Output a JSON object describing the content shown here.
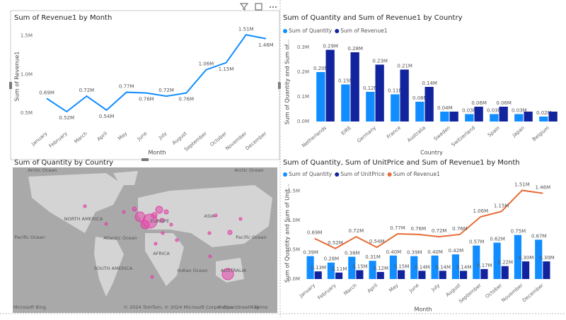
{
  "chart_data": [
    {
      "type": "line",
      "title": "Sum of Revenue1 by Month",
      "x_label": "Month",
      "y_label": "Sum of Revenue1",
      "categories": [
        "January",
        "February",
        "March",
        "April",
        "May",
        "June",
        "July",
        "August",
        "September",
        "October",
        "November",
        "December"
      ],
      "series": [
        {
          "name": "Sum of Revenue1",
          "color": "#118DFF",
          "values": [
            690000,
            520000,
            720000,
            540000,
            770000,
            760000,
            720000,
            760000,
            1060000,
            1150000,
            1510000,
            1460000
          ],
          "value_labels": [
            "0.69M",
            "0.52M",
            "0.72M",
            "0.54M",
            "0.77M",
            "0.76M",
            "0.72M",
            "0.76M",
            "1.06M",
            "1.15M",
            "1.51M",
            "1.46M"
          ]
        }
      ],
      "ylim": [
        320000,
        1640000
      ],
      "yticks": [
        {
          "value": 500000,
          "label": "0.5M"
        },
        {
          "value": 1000000,
          "label": "1.0M"
        },
        {
          "value": 1500000,
          "label": "1.5M"
        }
      ],
      "legend": false
    },
    {
      "type": "bar",
      "title": "Sum of Quantity and Sum of Revenue1 by Country",
      "x_label": "Country",
      "y_label": "Sum of Quantity and Sum of...",
      "categories": [
        "Netherlands",
        "EIRE",
        "Germany",
        "France",
        "Australia",
        "Sweden",
        "Switzerland",
        "Spain",
        "Japan",
        "Belgium"
      ],
      "series": [
        {
          "name": "Sum of Quantity",
          "color": "#118DFF",
          "values": [
            200000,
            150000,
            120000,
            110000,
            80000,
            40000,
            30000,
            30000,
            30000,
            20000
          ],
          "value_labels": [
            "0.20M",
            "0.15M",
            "0.12M",
            "0.11M",
            "0.08M",
            "0.04M",
            "0.03M",
            "0.03M",
            "0.03M",
            "0.02M"
          ]
        },
        {
          "name": "Sum of Revenue1",
          "color": "#12239E",
          "values": [
            290000,
            280000,
            230000,
            210000,
            140000,
            40000,
            60000,
            60000,
            40000,
            40000
          ],
          "value_labels": [
            "0.29M",
            "0.28M",
            "0.23M",
            "0.21M",
            "0.14M",
            null,
            "0.06M",
            "0.06M",
            null,
            null
          ]
        }
      ],
      "ylim": [
        0,
        320000
      ],
      "yticks": [
        {
          "value": 0,
          "label": "0.0M"
        },
        {
          "value": 100000,
          "label": "0.1M"
        },
        {
          "value": 200000,
          "label": "0.2M"
        },
        {
          "value": 300000,
          "label": "0.3M"
        }
      ],
      "legend": "top-left"
    },
    {
      "type": "map",
      "title": "Sum of Quantity by Country",
      "place_labels": [
        "Arctic Ocean",
        "Arctic Ocean",
        "NORTH AMERICA",
        "EUROPE",
        "ASIA",
        "Pacific Ocean",
        "Atlantic Ocean",
        "Pacific Ocean",
        "AFRICA",
        "SOUTH AMERICA",
        "Indian Ocean",
        "AUSTRALIA"
      ],
      "attribution": {
        "logo": "Microsoft Bing",
        "copyright": "© 2024 TomTom, © 2024 Microsoft Corporation",
        "osm": "© OpenStreetMap",
        "terms": "Terms"
      },
      "bubble_color": "#E044A7"
    },
    {
      "type": "combo",
      "title": "Sum of Quantity, Sum of UnitPrice and Sum of Revenue1 by Month",
      "x_label": "Month",
      "y_label": "Sum of Quantity and Sum of Unit...",
      "categories": [
        "January",
        "February",
        "March",
        "April",
        "May",
        "June",
        "July",
        "August",
        "September",
        "October",
        "November",
        "December"
      ],
      "series": [
        {
          "name": "Sum of Quantity",
          "color": "#118DFF",
          "type": "bar",
          "values": [
            390000,
            280000,
            380000,
            310000,
            400000,
            390000,
            400000,
            420000,
            570000,
            620000,
            750000,
            670000
          ],
          "value_labels": [
            "0.39M",
            "0.28M",
            "0.38M",
            "0.31M",
            "0.40M",
            "0.39M",
            "0.40M",
            "0.42M",
            "0.57M",
            "0.62M",
            "0.75M",
            "0.67M"
          ]
        },
        {
          "name": "Sum of UnitPrice",
          "color": "#12239E",
          "type": "bar",
          "values": [
            130000,
            110000,
            150000,
            120000,
            150000,
            140000,
            140000,
            140000,
            170000,
            220000,
            300000,
            300000
          ],
          "value_labels": [
            "0.13M",
            "0.11M",
            "0.15M",
            "0.12M",
            "0.15M",
            "0.14M",
            "0.14M",
            "0.14M",
            "0.17M",
            "0.22M",
            "0.30M",
            "0.30M"
          ]
        },
        {
          "name": "Sum of Revenue1",
          "color": "#E66C37",
          "type": "line",
          "values": [
            690000,
            520000,
            720000,
            540000,
            770000,
            760000,
            720000,
            760000,
            1060000,
            1150000,
            1510000,
            1460000
          ],
          "value_labels": [
            "0.69M",
            "0.52M",
            "0.72M",
            "0.54M",
            "0.77M",
            "0.76M",
            "0.72M",
            "0.76M",
            "1.06M",
            "1.15M",
            "1.51M",
            "1.46M"
          ]
        }
      ],
      "ylim": [
        0,
        1600000
      ],
      "yticks": [
        {
          "value": 0,
          "label": "0.0M"
        },
        {
          "value": 500000,
          "label": "0.5M"
        },
        {
          "value": 1000000,
          "label": "1.0M"
        },
        {
          "value": 1500000,
          "label": "1.5M"
        }
      ],
      "legend": "top-left"
    }
  ]
}
